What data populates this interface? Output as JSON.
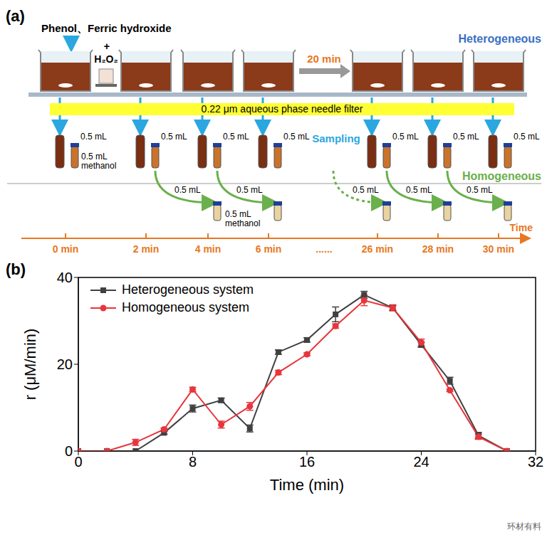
{
  "diagram": {
    "panel_label": "(a)",
    "reagents": "Phenol、Ferric hydroxide",
    "plus": "+",
    "oxidant": "H₂O₂",
    "heterogeneous": "Heterogeneous",
    "wait": "20 min",
    "filter": "0.22 μm aqueous phase needle filter",
    "sampling": "Sampling",
    "sample_volume_labels": [
      "0.5 mL",
      "0.5 mL",
      "0.5 mL",
      "0.5 mL",
      "0.5 mL",
      "0.5 mL",
      "0.5 mL"
    ],
    "methanol_volume": "0.5 mL",
    "methanol": "methanol",
    "homogeneous": "Homogeneous",
    "transfer_labels": [
      "0.5 mL",
      "0.5 mL",
      "0.5 mL",
      "0.5 mL",
      "0.5 mL"
    ],
    "homogeneous_methanol_volume": "0.5 mL",
    "homogeneous_methanol": "methanol",
    "times": [
      "0 min",
      "2 min",
      "4 min",
      "6 min",
      "......",
      "26 min",
      "28 min",
      "30 min"
    ],
    "time_axis": "Time"
  },
  "chart_data": {
    "type": "line",
    "panel_label": "(b)",
    "x_label": "Time (min)",
    "y_label": "r (μM/min)",
    "x": [
      0,
      2,
      4,
      6,
      8,
      10,
      12,
      14,
      16,
      18,
      20,
      22,
      24,
      26,
      28,
      30
    ],
    "xlim": [
      0,
      32
    ],
    "xticks": [
      0,
      8,
      16,
      24,
      32
    ],
    "ylim": [
      0,
      40
    ],
    "yticks": [
      0,
      20,
      40
    ],
    "legend": "upper left",
    "series": [
      {
        "name": "Heterogeneous system",
        "color": "#404040",
        "marker": "square",
        "values": [
          0,
          0,
          0,
          4.2,
          9.8,
          11.7,
          5.2,
          22.8,
          25.6,
          31.5,
          36,
          33,
          24.5,
          16.2,
          3.6,
          0
        ],
        "errors": [
          0,
          0,
          0,
          0.3,
          0.8,
          0.5,
          0.8,
          0.5,
          0.5,
          1.7,
          0.8,
          0.5,
          0.6,
          0.8,
          0.7,
          0
        ]
      },
      {
        "name": "Homogeneous system",
        "color": "#e8353b",
        "marker": "circle",
        "values": [
          0,
          0,
          2,
          5,
          14.2,
          6.1,
          10.3,
          18.1,
          22.3,
          28.8,
          34.7,
          33,
          25,
          14,
          3.3,
          0
        ],
        "errors": [
          0,
          0,
          0.7,
          0.3,
          0.5,
          0.8,
          0.9,
          0.5,
          0.3,
          0.5,
          1.2,
          0.7,
          0.8,
          0.3,
          0.6,
          0
        ]
      }
    ]
  },
  "watermark": "环材有料"
}
